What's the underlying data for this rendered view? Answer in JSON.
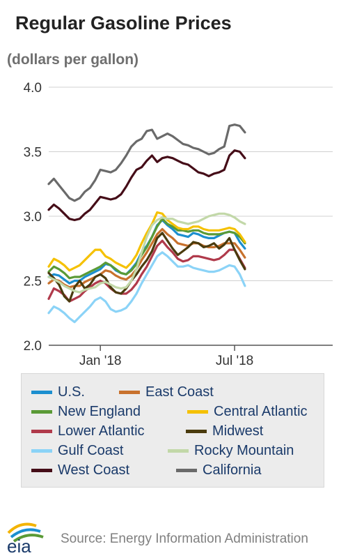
{
  "chart_data": {
    "type": "line",
    "title": "Regular Gasoline Prices",
    "subtitle": "(dollars per gallon)",
    "ylim": [
      2.0,
      4.0
    ],
    "yticks": [
      "4.0",
      "3.5",
      "3.0",
      "2.5",
      "2.0"
    ],
    "yticks_values": [
      4.0,
      3.5,
      3.0,
      2.5,
      2.0
    ],
    "xticks": [
      "Jan '18",
      "Jul '18"
    ],
    "xlim": [
      "2017-10-23",
      "2018-11-12"
    ],
    "xtick_dates": [
      "2018-01-01",
      "2018-07-02"
    ],
    "grid": true,
    "legend_position": "bottom",
    "series": [
      {
        "name": "U.S.",
        "color": "#1c8fcf",
        "values": [
          2.53,
          2.55,
          2.54,
          2.51,
          2.48,
          2.5,
          2.5,
          2.53,
          2.55,
          2.57,
          2.59,
          2.63,
          2.62,
          2.58,
          2.56,
          2.55,
          2.59,
          2.64,
          2.72,
          2.77,
          2.84,
          2.93,
          2.97,
          2.93,
          2.9,
          2.86,
          2.85,
          2.84,
          2.87,
          2.86,
          2.84,
          2.83,
          2.83,
          2.85,
          2.87,
          2.88,
          2.87,
          2.8,
          2.75
        ]
      },
      {
        "name": "East Coast",
        "color": "#c8712d",
        "values": [
          2.48,
          2.51,
          2.5,
          2.47,
          2.45,
          2.46,
          2.46,
          2.49,
          2.51,
          2.53,
          2.55,
          2.58,
          2.57,
          2.54,
          2.52,
          2.51,
          2.54,
          2.59,
          2.66,
          2.72,
          2.79,
          2.86,
          2.9,
          2.86,
          2.83,
          2.79,
          2.78,
          2.77,
          2.79,
          2.79,
          2.77,
          2.76,
          2.76,
          2.77,
          2.79,
          2.79,
          2.79,
          2.74,
          2.68
        ]
      },
      {
        "name": "New England",
        "color": "#5a9a36",
        "values": [
          2.57,
          2.61,
          2.59,
          2.56,
          2.52,
          2.53,
          2.53,
          2.55,
          2.57,
          2.59,
          2.61,
          2.64,
          2.62,
          2.59,
          2.56,
          2.55,
          2.58,
          2.63,
          2.7,
          2.76,
          2.84,
          2.92,
          2.98,
          2.94,
          2.92,
          2.89,
          2.89,
          2.88,
          2.89,
          2.89,
          2.87,
          2.86,
          2.86,
          2.86,
          2.87,
          2.88,
          2.87,
          2.84,
          2.79
        ]
      },
      {
        "name": "Central Atlantic",
        "color": "#f5c100",
        "values": [
          2.61,
          2.67,
          2.65,
          2.62,
          2.58,
          2.6,
          2.62,
          2.66,
          2.7,
          2.74,
          2.74,
          2.69,
          2.67,
          2.64,
          2.62,
          2.6,
          2.64,
          2.7,
          2.79,
          2.87,
          2.94,
          3.03,
          3.02,
          2.97,
          2.94,
          2.91,
          2.9,
          2.9,
          2.92,
          2.92,
          2.9,
          2.89,
          2.89,
          2.89,
          2.9,
          2.91,
          2.9,
          2.86,
          2.8
        ]
      },
      {
        "name": "Lower Atlantic",
        "color": "#b03a4b",
        "values": [
          2.36,
          2.44,
          2.42,
          2.39,
          2.34,
          2.36,
          2.38,
          2.42,
          2.45,
          2.48,
          2.5,
          2.48,
          2.44,
          2.41,
          2.4,
          2.4,
          2.43,
          2.48,
          2.55,
          2.61,
          2.69,
          2.77,
          2.81,
          2.76,
          2.72,
          2.67,
          2.65,
          2.66,
          2.69,
          2.69,
          2.68,
          2.67,
          2.66,
          2.67,
          2.7,
          2.74,
          2.74,
          2.67,
          2.6
        ]
      },
      {
        "name": "Midwest",
        "color": "#4a3b0e",
        "values": [
          2.56,
          2.52,
          2.47,
          2.38,
          2.34,
          2.45,
          2.5,
          2.44,
          2.47,
          2.53,
          2.55,
          2.52,
          2.45,
          2.41,
          2.4,
          2.44,
          2.5,
          2.55,
          2.61,
          2.66,
          2.73,
          2.83,
          2.87,
          2.81,
          2.75,
          2.7,
          2.73,
          2.76,
          2.8,
          2.79,
          2.76,
          2.77,
          2.79,
          2.75,
          2.78,
          2.83,
          2.74,
          2.66,
          2.59
        ]
      },
      {
        "name": "Gulf Coast",
        "color": "#8bd3f7",
        "values": [
          2.25,
          2.3,
          2.28,
          2.25,
          2.21,
          2.18,
          2.22,
          2.26,
          2.3,
          2.35,
          2.37,
          2.34,
          2.28,
          2.26,
          2.27,
          2.29,
          2.34,
          2.4,
          2.48,
          2.55,
          2.62,
          2.69,
          2.72,
          2.69,
          2.65,
          2.61,
          2.61,
          2.62,
          2.6,
          2.59,
          2.58,
          2.57,
          2.57,
          2.58,
          2.6,
          2.62,
          2.61,
          2.55,
          2.46
        ]
      },
      {
        "name": "Rocky Mountain",
        "color": "#c2d8a8",
        "values": [
          2.53,
          2.51,
          2.49,
          2.46,
          2.44,
          2.42,
          2.41,
          2.43,
          2.44,
          2.45,
          2.48,
          2.49,
          2.47,
          2.45,
          2.44,
          2.45,
          2.5,
          2.59,
          2.72,
          2.84,
          2.93,
          2.97,
          2.99,
          2.98,
          2.98,
          2.96,
          2.95,
          2.94,
          2.95,
          2.96,
          2.98,
          3.0,
          3.01,
          3.02,
          3.02,
          3.01,
          2.99,
          2.96,
          2.94
        ]
      },
      {
        "name": "West Coast",
        "color": "#450d18",
        "values": [
          3.05,
          3.09,
          3.06,
          3.02,
          2.98,
          2.97,
          2.98,
          3.02,
          3.05,
          3.1,
          3.15,
          3.14,
          3.13,
          3.14,
          3.17,
          3.23,
          3.3,
          3.36,
          3.38,
          3.43,
          3.47,
          3.42,
          3.45,
          3.46,
          3.45,
          3.43,
          3.41,
          3.4,
          3.37,
          3.34,
          3.33,
          3.31,
          3.33,
          3.34,
          3.36,
          3.47,
          3.51,
          3.5,
          3.45
        ]
      },
      {
        "name": "California",
        "color": "#6a6a6a",
        "values": [
          3.25,
          3.29,
          3.24,
          3.19,
          3.14,
          3.12,
          3.14,
          3.19,
          3.22,
          3.28,
          3.36,
          3.35,
          3.34,
          3.36,
          3.41,
          3.47,
          3.54,
          3.58,
          3.6,
          3.66,
          3.67,
          3.6,
          3.62,
          3.64,
          3.62,
          3.59,
          3.56,
          3.55,
          3.53,
          3.52,
          3.5,
          3.48,
          3.49,
          3.52,
          3.54,
          3.7,
          3.71,
          3.7,
          3.65
        ]
      }
    ]
  },
  "footer": {
    "logo_text": "eia",
    "source": "Source: Energy Information Administration"
  }
}
